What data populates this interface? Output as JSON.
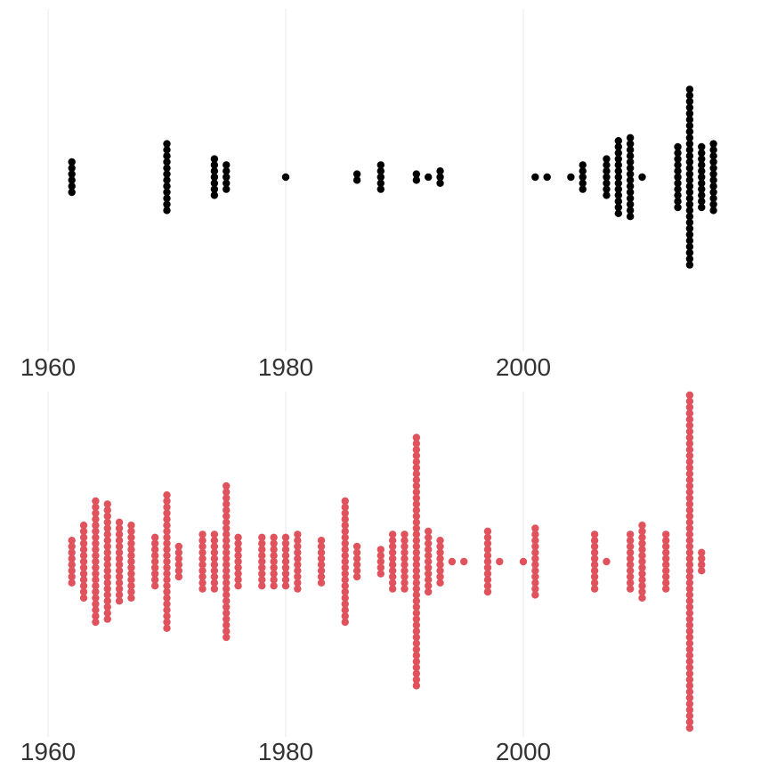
{
  "chart_data": [
    {
      "type": "beeswarm",
      "color": "#000000",
      "x_ticks": [
        1960,
        1980,
        2000
      ],
      "xlim": [
        1958,
        2018
      ],
      "grid": "vertical",
      "points_per_year": {
        "1962": 6,
        "1970": 12,
        "1974": 7,
        "1975": 5,
        "1980": 1,
        "1986": 2,
        "1988": 5,
        "1991": 2,
        "1992": 1,
        "1993": 3,
        "2001": 1,
        "2002": 1,
        "2004": 1,
        "2005": 5,
        "2007": 7,
        "2008": 13,
        "2009": 14,
        "2010": 1,
        "2013": 11,
        "2014": 30,
        "2015": 11,
        "2016": 12
      }
    },
    {
      "type": "beeswarm",
      "color": "#e0525c",
      "x_ticks": [
        1960,
        1980,
        2000
      ],
      "xlim": [
        1958,
        2018
      ],
      "grid": "vertical",
      "points_per_year": {
        "1962": 8,
        "1963": 13,
        "1964": 21,
        "1965": 20,
        "1966": 14,
        "1967": 13,
        "1969": 9,
        "1970": 23,
        "1971": 6,
        "1973": 10,
        "1974": 10,
        "1975": 26,
        "1976": 9,
        "1978": 9,
        "1979": 9,
        "1980": 9,
        "1981": 10,
        "1983": 8,
        "1985": 21,
        "1986": 6,
        "1988": 5,
        "1989": 10,
        "1990": 10,
        "1991": 42,
        "1992": 11,
        "1993": 8,
        "1994": 1,
        "1995": 1,
        "1997": 11,
        "1998": 1,
        "2000": 1,
        "2001": 12,
        "2006": 10,
        "2007": 1,
        "2009": 10,
        "2010": 13,
        "2012": 10,
        "2014": 56,
        "2015": 4
      }
    }
  ]
}
